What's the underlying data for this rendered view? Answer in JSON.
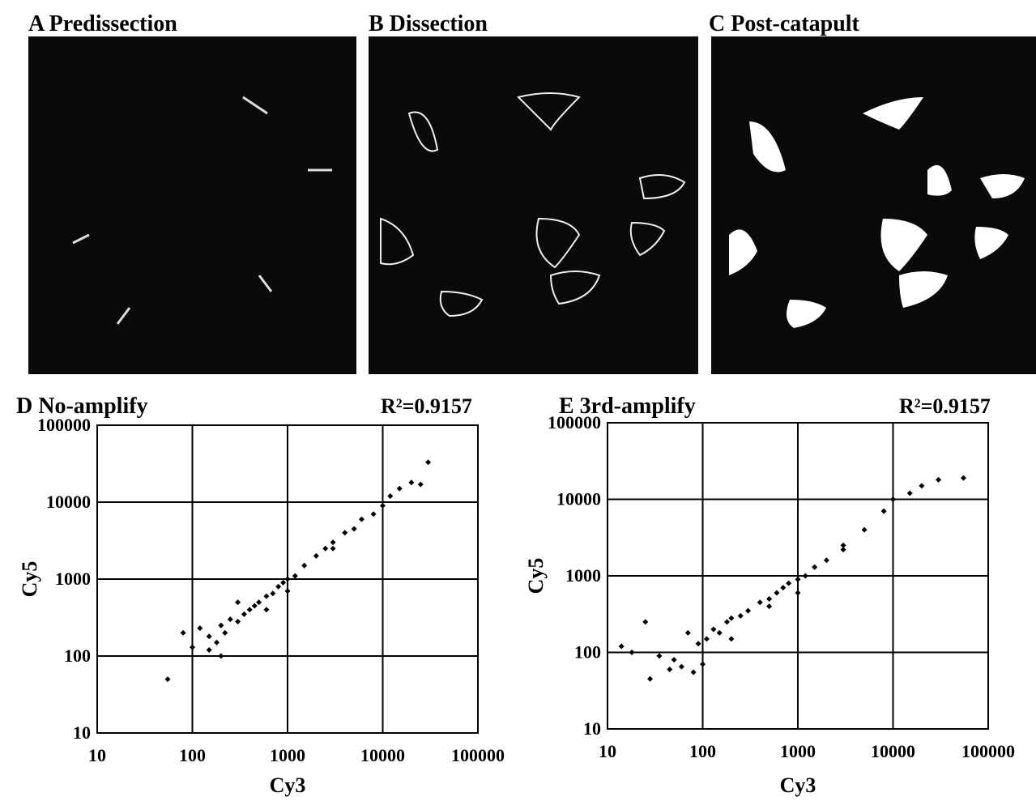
{
  "panels": [
    {
      "title": "A  Predissection"
    },
    {
      "title": "B  Dissection"
    },
    {
      "title": "C  Post-catapult"
    }
  ],
  "chart_data": [
    {
      "type": "scatter",
      "title": "D  No-amplify",
      "annotation": "R²=0.9157",
      "x_label": "Cy3",
      "y_label": "Cy5",
      "log_scale": true,
      "grid": true,
      "xlim": [
        10,
        100000
      ],
      "ylim": [
        10,
        100000
      ],
      "xticks": [
        10,
        100,
        1000,
        10000,
        100000
      ],
      "yticks": [
        10,
        100,
        1000,
        10000,
        100000
      ],
      "series": [
        {
          "color": "#000000",
          "x": [
            55,
            80,
            100,
            120,
            150,
            180,
            200,
            220,
            250,
            300,
            350,
            400,
            450,
            500,
            600,
            700,
            800,
            900,
            1000,
            1200,
            1500,
            2000,
            2500,
            3000,
            4000,
            5000,
            6000,
            8000,
            10000,
            12000,
            15000,
            20000,
            25000,
            30000,
            150,
            300,
            600,
            1000,
            3000,
            200
          ],
          "values": [
            50,
            200,
            130,
            230,
            180,
            150,
            250,
            200,
            300,
            280,
            350,
            400,
            450,
            500,
            600,
            650,
            800,
            900,
            1000,
            1100,
            1500,
            2000,
            2500,
            3000,
            4000,
            4500,
            6000,
            7000,
            9000,
            12000,
            15000,
            18000,
            17000,
            33000,
            120,
            500,
            400,
            700,
            2500,
            100
          ]
        }
      ]
    },
    {
      "type": "scatter",
      "title": "E  3rd-amplify",
      "annotation": "R²=0.9157",
      "x_label": "Cy3",
      "y_label": "Cy5",
      "log_scale": true,
      "grid": true,
      "xlim": [
        10,
        100000
      ],
      "ylim": [
        10,
        100000
      ],
      "xticks": [
        10,
        100,
        1000,
        10000,
        100000
      ],
      "yticks": [
        10,
        100,
        1000,
        10000,
        100000
      ],
      "series": [
        {
          "color": "#000000",
          "x": [
            14,
            18,
            25,
            28,
            35,
            45,
            50,
            60,
            80,
            90,
            100,
            110,
            130,
            150,
            180,
            200,
            250,
            300,
            400,
            500,
            600,
            700,
            800,
            1000,
            1200,
            1500,
            2000,
            3000,
            5000,
            8000,
            10000,
            15000,
            20000,
            30000,
            55000,
            70,
            200,
            500,
            1000,
            3000
          ],
          "values": [
            120,
            100,
            250,
            45,
            90,
            60,
            80,
            65,
            55,
            130,
            70,
            150,
            200,
            180,
            250,
            280,
            300,
            350,
            450,
            500,
            600,
            700,
            800,
            900,
            1000,
            1300,
            1600,
            2500,
            4000,
            7000,
            10000,
            12000,
            15000,
            18000,
            19000,
            180,
            150,
            400,
            600,
            2200
          ]
        }
      ]
    }
  ]
}
